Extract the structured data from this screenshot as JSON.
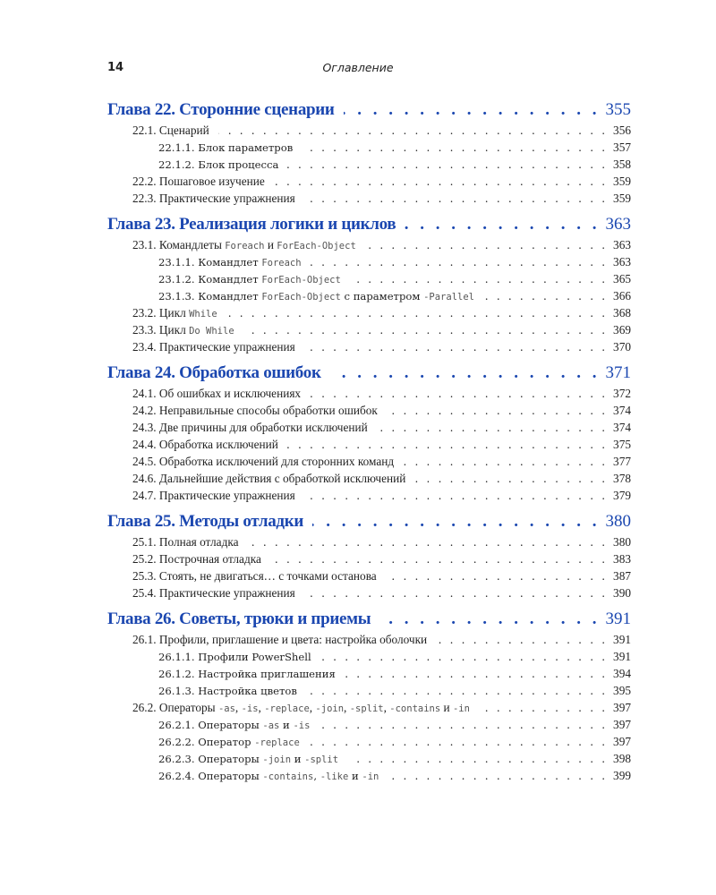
{
  "header": {
    "page_number": "14",
    "running_title": "Оглавление"
  },
  "colors": {
    "chapter": "#1b47b0",
    "text": "#222222",
    "code": "#555555"
  },
  "chapters": [
    {
      "title": "Глава 22. Сторонние сценарии",
      "page": "355",
      "entries": [
        {
          "level": 1,
          "parts": [
            {
              "t": "22.1. Сценарий"
            }
          ],
          "page": "356"
        },
        {
          "level": 2,
          "parts": [
            {
              "t": "22.1.1. Блок параметров"
            }
          ],
          "page": "357"
        },
        {
          "level": 2,
          "parts": [
            {
              "t": "22.1.2. Блок процесса"
            }
          ],
          "page": "358"
        },
        {
          "level": 1,
          "parts": [
            {
              "t": "22.2. Пошаговое изучение"
            }
          ],
          "page": "359"
        },
        {
          "level": 1,
          "parts": [
            {
              "t": "22.3. Практические упражнения"
            }
          ],
          "page": "359"
        }
      ]
    },
    {
      "title": "Глава 23. Реализация логики и циклов",
      "page": "363",
      "entries": [
        {
          "level": 1,
          "parts": [
            {
              "t": "23.1. Командлеты "
            },
            {
              "t": "Foreach",
              "mono": true
            },
            {
              "t": " и "
            },
            {
              "t": "ForEach-Object",
              "mono": true
            }
          ],
          "page": "363"
        },
        {
          "level": 2,
          "parts": [
            {
              "t": "23.1.1. Командлет "
            },
            {
              "t": "Foreach",
              "mono": true
            }
          ],
          "page": "363"
        },
        {
          "level": 2,
          "parts": [
            {
              "t": "23.1.2. Командлет "
            },
            {
              "t": "ForEach-Object",
              "mono": true
            }
          ],
          "page": "365"
        },
        {
          "level": 2,
          "parts": [
            {
              "t": "23.1.3. Командлет "
            },
            {
              "t": "ForEach-Object",
              "mono": true
            },
            {
              "t": " с параметром "
            },
            {
              "t": "-Parallel",
              "mono": true
            }
          ],
          "page": "366"
        },
        {
          "level": 1,
          "parts": [
            {
              "t": "23.2. Цикл "
            },
            {
              "t": "While",
              "mono": true
            }
          ],
          "page": "368"
        },
        {
          "level": 1,
          "parts": [
            {
              "t": "23.3. Цикл "
            },
            {
              "t": "Do While",
              "mono": true
            }
          ],
          "page": "369"
        },
        {
          "level": 1,
          "parts": [
            {
              "t": "23.4. Практические упражнения"
            }
          ],
          "page": "370"
        }
      ]
    },
    {
      "title": "Глава 24. Обработка ошибок",
      "page": "371",
      "entries": [
        {
          "level": 1,
          "parts": [
            {
              "t": "24.1. Об ошибках и исключениях"
            }
          ],
          "page": "372"
        },
        {
          "level": 1,
          "parts": [
            {
              "t": "24.2. Неправильные способы обработки ошибок"
            }
          ],
          "page": "374"
        },
        {
          "level": 1,
          "parts": [
            {
              "t": "24.3. Две причины для обработки исключений"
            }
          ],
          "page": "374"
        },
        {
          "level": 1,
          "parts": [
            {
              "t": "24.4. Обработка исключений"
            }
          ],
          "page": "375"
        },
        {
          "level": 1,
          "parts": [
            {
              "t": "24.5. Обработка исключений для сторонних команд"
            }
          ],
          "page": "377"
        },
        {
          "level": 1,
          "parts": [
            {
              "t": "24.6. Дальнейшие действия с обработкой исключений"
            }
          ],
          "page": "378"
        },
        {
          "level": 1,
          "parts": [
            {
              "t": "24.7. Практические упражнения"
            }
          ],
          "page": "379"
        }
      ]
    },
    {
      "title": "Глава 25. Методы отладки",
      "page": "380",
      "entries": [
        {
          "level": 1,
          "parts": [
            {
              "t": "25.1. Полная отладка"
            }
          ],
          "page": "380"
        },
        {
          "level": 1,
          "parts": [
            {
              "t": "25.2. Построчная отладка"
            }
          ],
          "page": "383"
        },
        {
          "level": 1,
          "parts": [
            {
              "t": "25.3. Стоять, не двигаться… с точками останова"
            }
          ],
          "page": "387"
        },
        {
          "level": 1,
          "parts": [
            {
              "t": "25.4. Практические упражнения"
            }
          ],
          "page": "390"
        }
      ]
    },
    {
      "title": "Глава 26. Советы, трюки и приемы",
      "page": "391",
      "entries": [
        {
          "level": 1,
          "parts": [
            {
              "t": "26.1. Профили, приглашение и цвета: настройка оболочки"
            }
          ],
          "page": "391"
        },
        {
          "level": 2,
          "parts": [
            {
              "t": "26.1.1. Профили PowerShell"
            }
          ],
          "page": "391"
        },
        {
          "level": 2,
          "parts": [
            {
              "t": "26.1.2. Настройка приглашения"
            }
          ],
          "page": "394"
        },
        {
          "level": 2,
          "parts": [
            {
              "t": "26.1.3. Настройка цветов"
            }
          ],
          "page": "395"
        },
        {
          "level": 1,
          "parts": [
            {
              "t": "26.2. Операторы "
            },
            {
              "t": "-as",
              "mono": true
            },
            {
              "t": ", "
            },
            {
              "t": "-is",
              "mono": true
            },
            {
              "t": ", "
            },
            {
              "t": "-replace",
              "mono": true
            },
            {
              "t": ", "
            },
            {
              "t": "-join",
              "mono": true
            },
            {
              "t": ", "
            },
            {
              "t": "-split",
              "mono": true
            },
            {
              "t": ", "
            },
            {
              "t": "-contains",
              "mono": true
            },
            {
              "t": " и "
            },
            {
              "t": "-in",
              "mono": true
            }
          ],
          "page": "397"
        },
        {
          "level": 2,
          "parts": [
            {
              "t": "26.2.1. Операторы "
            },
            {
              "t": "-as",
              "mono": true
            },
            {
              "t": " и "
            },
            {
              "t": "-is",
              "mono": true
            }
          ],
          "page": "397"
        },
        {
          "level": 2,
          "parts": [
            {
              "t": "26.2.2. Оператор "
            },
            {
              "t": "-replace",
              "mono": true
            }
          ],
          "page": "397"
        },
        {
          "level": 2,
          "parts": [
            {
              "t": "26.2.3. Операторы "
            },
            {
              "t": "-join",
              "mono": true
            },
            {
              "t": " и "
            },
            {
              "t": "-split",
              "mono": true
            }
          ],
          "page": "398"
        },
        {
          "level": 2,
          "parts": [
            {
              "t": "26.2.4. Операторы "
            },
            {
              "t": "-contains",
              "mono": true
            },
            {
              "t": ", "
            },
            {
              "t": "-like",
              "mono": true
            },
            {
              "t": " и "
            },
            {
              "t": "-in",
              "mono": true
            }
          ],
          "page": "399"
        }
      ]
    }
  ]
}
